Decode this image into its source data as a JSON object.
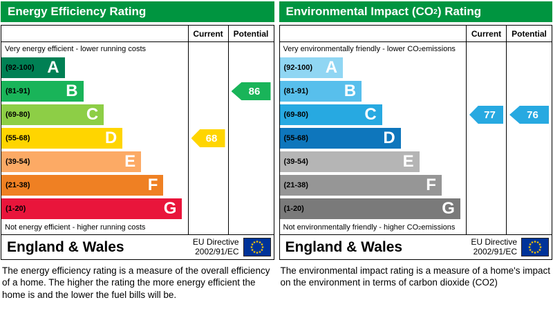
{
  "chart_data": [
    {
      "type": "bar",
      "title": "Energy Efficiency Rating",
      "categories": [
        "A",
        "B",
        "C",
        "D",
        "E",
        "F",
        "G"
      ],
      "band_ranges": [
        "92-100",
        "81-91",
        "69-80",
        "55-68",
        "39-54",
        "21-38",
        "1-20"
      ],
      "columns": [
        "Current",
        "Potential"
      ],
      "current": 68,
      "potential": 86,
      "current_band": "D",
      "potential_band": "B"
    },
    {
      "type": "bar",
      "title": "Environmental Impact (CO2) Rating",
      "categories": [
        "A",
        "B",
        "C",
        "D",
        "E",
        "F",
        "G"
      ],
      "band_ranges": [
        "92-100",
        "81-91",
        "69-80",
        "55-68",
        "39-54",
        "21-38",
        "1-20"
      ],
      "columns": [
        "Current",
        "Potential"
      ],
      "current": 77,
      "potential": 76,
      "current_band": "C",
      "potential_band": "C"
    }
  ],
  "panels": [
    {
      "title": {
        "pre": "Energy Efficiency Rating",
        "sub": "",
        "post": ""
      },
      "header_color": "#009540",
      "columns": {
        "current": "Current",
        "potential": "Potential"
      },
      "top_caption": {
        "pre": "Very energy efficient - lower running costs",
        "sub": "",
        "post": ""
      },
      "bottom_caption": {
        "pre": "Not energy efficient - higher running costs",
        "sub": "",
        "post": ""
      },
      "bands": [
        {
          "letter": "A",
          "range": "(92-100)",
          "color": "#008054",
          "width_pct": 34
        },
        {
          "letter": "B",
          "range": "(81-91)",
          "color": "#19b459",
          "width_pct": 44
        },
        {
          "letter": "C",
          "range": "(69-80)",
          "color": "#8dce46",
          "width_pct": 55
        },
        {
          "letter": "D",
          "range": "(55-68)",
          "color": "#ffd500",
          "width_pct": 65
        },
        {
          "letter": "E",
          "range": "(39-54)",
          "color": "#fcaa65",
          "width_pct": 75
        },
        {
          "letter": "F",
          "range": "(21-38)",
          "color": "#ef8023",
          "width_pct": 87
        },
        {
          "letter": "G",
          "range": "(1-20)",
          "color": "#e9153b",
          "width_pct": 97
        }
      ],
      "current": {
        "value": "68",
        "band_index": 3,
        "color": "#ffd500"
      },
      "potential": {
        "value": "86",
        "band_index": 1,
        "color": "#19b459"
      },
      "footer": {
        "region": "England & Wales",
        "directive_line1": "EU Directive",
        "directive_line2": "2002/91/EC"
      },
      "description": "The energy efficiency rating is a measure of the overall efficiency of a home.  The higher the rating the more energy efficient the home is and the lower the fuel bills will be."
    },
    {
      "title": {
        "pre": "Environmental Impact (CO",
        "sub": "2",
        "post": ") Rating"
      },
      "header_color": "#009540",
      "columns": {
        "current": "Current",
        "potential": "Potential"
      },
      "top_caption": {
        "pre": "Very environmentally friendly - lower CO",
        "sub": "2",
        "post": " emissions"
      },
      "bottom_caption": {
        "pre": "Not environmentally friendly - higher CO",
        "sub": "2",
        "post": " emissions"
      },
      "bands": [
        {
          "letter": "A",
          "range": "(92-100)",
          "color": "#90d6f3",
          "width_pct": 34
        },
        {
          "letter": "B",
          "range": "(81-91)",
          "color": "#58bfec",
          "width_pct": 44
        },
        {
          "letter": "C",
          "range": "(69-80)",
          "color": "#27a9e1",
          "width_pct": 55
        },
        {
          "letter": "D",
          "range": "(55-68)",
          "color": "#0e76bc",
          "width_pct": 65
        },
        {
          "letter": "E",
          "range": "(39-54)",
          "color": "#b5b5b5",
          "width_pct": 75
        },
        {
          "letter": "F",
          "range": "(21-38)",
          "color": "#969696",
          "width_pct": 87
        },
        {
          "letter": "G",
          "range": "(1-20)",
          "color": "#7a7a7a",
          "width_pct": 97
        }
      ],
      "current": {
        "value": "77",
        "band_index": 2,
        "color": "#27a9e1"
      },
      "potential": {
        "value": "76",
        "band_index": 2,
        "color": "#27a9e1"
      },
      "footer": {
        "region": "England & Wales",
        "directive_line1": "EU Directive",
        "directive_line2": "2002/91/EC"
      },
      "description": "The environmental impact rating is a measure of a home's impact on the environment in terms of carbon dioxide (CO2)"
    }
  ],
  "eu_flag": {
    "background": "#003399",
    "star_color": "#ffcc00"
  }
}
